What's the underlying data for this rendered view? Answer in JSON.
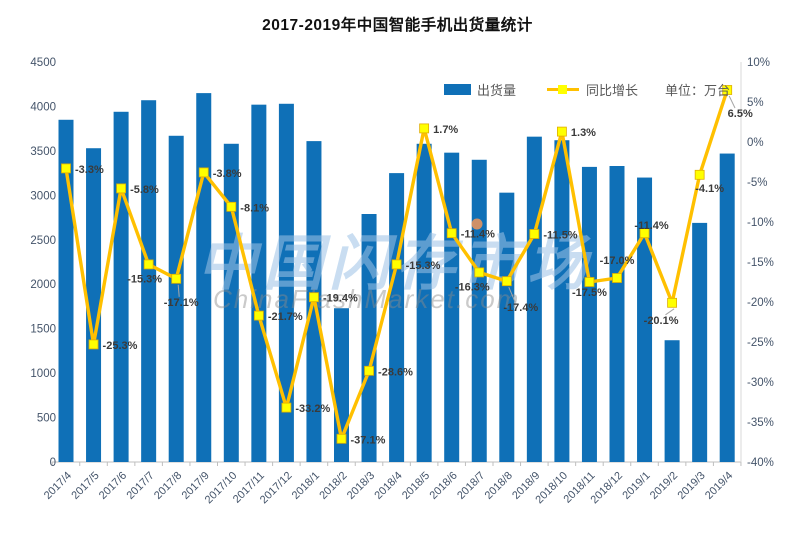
{
  "page": {
    "title": "2017-2019年中国智能手机出货量统计"
  },
  "legend": {
    "shipments_label": "出货量",
    "growth_label": "同比增长",
    "unit_label": "单位：万台"
  },
  "watermark": {
    "text": "中国闪存市场",
    "subtext": "ChinaFlashMarket.com"
  },
  "chart_data": {
    "type": "combo",
    "title": "2017-2019年中国智能手机出货量统计",
    "unit": "万台",
    "grid": false,
    "legend_position": "top-right",
    "categories": [
      "2017/4",
      "2017/5",
      "2017/6",
      "2017/7",
      "2017/8",
      "2017/9",
      "2017/10",
      "2017/11",
      "2017/12",
      "2018/1",
      "2018/2",
      "2018/3",
      "2018/4",
      "2018/5",
      "2018/6",
      "2018/7",
      "2018/8",
      "2018/9",
      "2018/10",
      "2018/11",
      "2018/12",
      "2019/1",
      "2019/2",
      "2019/3",
      "2019/4"
    ],
    "series": [
      {
        "name": "出货量",
        "type": "bar",
        "axis": "left",
        "values": [
          3850,
          3530,
          3940,
          4070,
          3670,
          4150,
          3580,
          4020,
          4030,
          3610,
          1730,
          2790,
          3250,
          3580,
          3480,
          3400,
          3030,
          3660,
          3620,
          3320,
          3330,
          3200,
          1370,
          2690,
          3470
        ]
      },
      {
        "name": "同比增长",
        "type": "line",
        "axis": "right",
        "values": [
          -3.3,
          -25.3,
          -5.8,
          -15.3,
          -17.1,
          -3.8,
          -8.1,
          -21.7,
          -33.2,
          -19.4,
          -37.1,
          -28.6,
          -15.3,
          1.7,
          -11.4,
          -16.3,
          -17.4,
          -11.5,
          1.3,
          -17.5,
          -17.0,
          -11.4,
          -20.1,
          -4.1,
          6.5
        ],
        "labels": [
          "-3.3%",
          "-25.3%",
          "-5.8%",
          "-15.3%",
          "-17.1%",
          "-3.8%",
          "-8.1%",
          "-21.7%",
          "-33.2%",
          "-19.4%",
          "-37.1%",
          "-28.6%",
          "-15.3%",
          "1.7%",
          "-11.4%",
          "-16.3%",
          "-17.4%",
          "-11.5%",
          "1.3%",
          "-17.5%",
          "-17.0%",
          "-11.4%",
          "-20.1%",
          "-4.1%",
          "6.5%"
        ]
      }
    ],
    "axes": {
      "left": {
        "min": 0,
        "max": 4500,
        "step": 500,
        "ticks": [
          "4500",
          "4000",
          "3500",
          "3000",
          "2500",
          "2000",
          "1500",
          "1000",
          "500",
          "0"
        ]
      },
      "right": {
        "min": -40,
        "max": 10,
        "step": 5,
        "ticks": [
          "10%",
          "5%",
          "0%",
          "-5%",
          "-10%",
          "-15%",
          "-20%",
          "-25%",
          "-30%",
          "-35%",
          "-40%"
        ]
      }
    },
    "colors": {
      "bar": "#0F70B7",
      "line": "#FFC000",
      "marker": "#FFFF00",
      "axis_text": "#44546A",
      "label_text": "#3A3A3A",
      "axis_line": "#BFBFBF",
      "watermark_blue": "#9DC3E6",
      "watermark_orange": "#F0955A",
      "watermark_gray": "#8C8C8C"
    }
  }
}
